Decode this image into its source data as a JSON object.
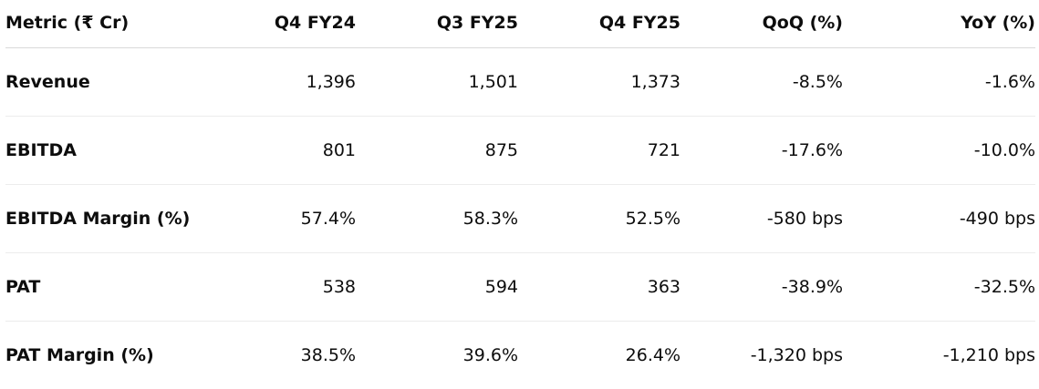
{
  "table": {
    "headers": [
      "Metric (₹ Cr)",
      "Q4 FY24",
      "Q3 FY25",
      "Q4 FY25",
      "QoQ (%)",
      "YoY (%)"
    ],
    "rows": [
      [
        "Revenue",
        "1,396",
        "1,501",
        "1,373",
        "-8.5%",
        "-1.6%"
      ],
      [
        "EBITDA",
        "801",
        "875",
        "721",
        "-17.6%",
        "-10.0%"
      ],
      [
        "EBITDA Margin (%)",
        "57.4%",
        "58.3%",
        "52.5%",
        "-580 bps",
        "-490 bps"
      ],
      [
        "PAT",
        "538",
        "594",
        "363",
        "-38.9%",
        "-32.5%"
      ],
      [
        "PAT Margin (%)",
        "38.5%",
        "39.6%",
        "26.4%",
        "-1,320 bps",
        "-1,210 bps"
      ]
    ]
  }
}
